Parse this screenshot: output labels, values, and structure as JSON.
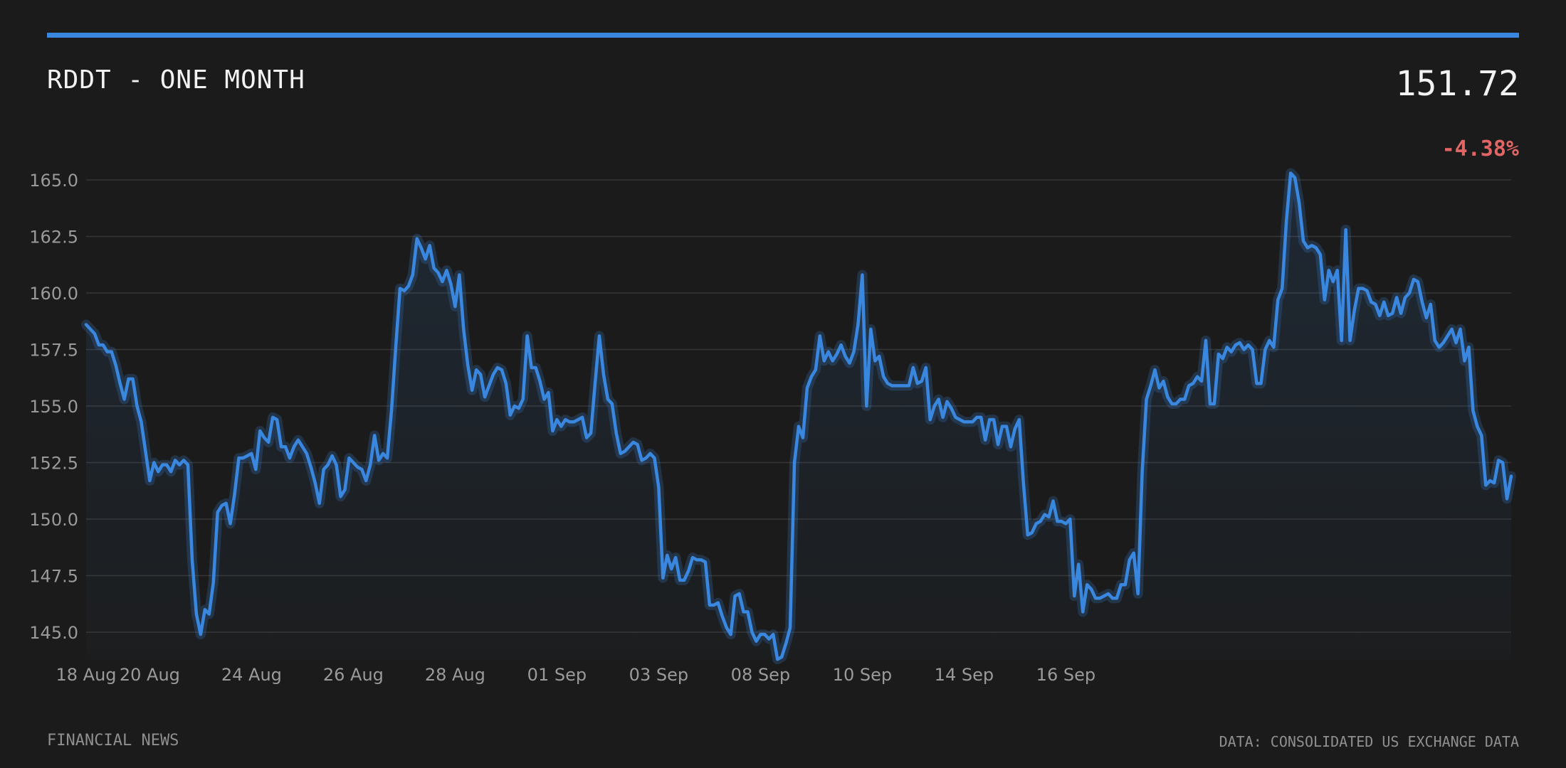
{
  "header": {
    "title": "RDDT - ONE MONTH",
    "price": "151.72",
    "change": "-4.38%"
  },
  "footer": {
    "left": "FINANCIAL NEWS",
    "right": "DATA: CONSOLIDATED US EXCHANGE DATA"
  },
  "colors": {
    "background": "#1b1b1b",
    "accent": "#3a87e0",
    "negative": "#e06666",
    "grid": "#363636",
    "text_muted": "#9a9a9a"
  },
  "chart_data": {
    "type": "line",
    "title": "",
    "xlabel": "",
    "ylabel": "",
    "ylim": [
      143.8,
      166.2
    ],
    "y_ticks": [
      "145.0",
      "147.5",
      "150.0",
      "152.5",
      "155.0",
      "157.5",
      "160.0",
      "162.5",
      "165.0"
    ],
    "y_tick_values": [
      145.0,
      147.5,
      150.0,
      152.5,
      155.0,
      157.5,
      160.0,
      162.5,
      165.0
    ],
    "x_ticks": [
      "18 Aug",
      "20 Aug",
      "24 Aug",
      "26 Aug",
      "28 Aug",
      "01 Sep",
      "03 Sep",
      "08 Sep",
      "10 Sep",
      "14 Sep",
      "16 Sep"
    ],
    "x_tick_index": [
      0,
      15,
      39,
      63,
      87,
      111,
      135,
      159,
      183,
      207,
      231
    ],
    "grid": true,
    "area_fill": true,
    "series": [
      {
        "values": [
          158.6,
          158.4,
          158.2,
          157.7,
          157.7,
          157.4,
          157.4,
          156.8,
          156.0,
          155.3,
          156.2,
          156.2,
          155.0,
          154.3,
          153.0,
          151.7,
          152.5,
          152.1,
          152.4,
          152.4,
          152.1,
          152.6,
          152.4,
          152.6,
          152.4,
          148.2,
          145.8,
          144.9,
          146.0,
          145.8,
          147.2,
          150.3,
          150.6,
          150.7,
          149.8,
          151.1,
          152.7,
          152.7,
          152.8,
          152.9,
          152.2,
          153.9,
          153.6,
          153.4,
          154.5,
          154.4,
          153.2,
          153.2,
          152.7,
          153.2,
          153.5,
          153.2,
          152.9,
          152.3,
          151.6,
          150.7,
          152.2,
          152.4,
          152.8,
          152.4,
          151.0,
          151.3,
          152.7,
          152.5,
          152.3,
          152.2,
          151.7,
          152.4,
          153.7,
          152.6,
          152.9,
          152.7,
          154.8,
          157.6,
          160.2,
          160.1,
          160.3,
          160.8,
          162.4,
          162.0,
          161.5,
          162.1,
          161.1,
          160.9,
          160.5,
          161.0,
          160.4,
          159.4,
          160.8,
          158.4,
          156.8,
          155.7,
          156.6,
          156.4,
          155.4,
          155.9,
          156.4,
          156.7,
          156.6,
          156.0,
          154.6,
          155.0,
          154.9,
          155.3,
          158.1,
          156.7,
          156.7,
          156.1,
          155.3,
          155.6,
          153.9,
          154.4,
          154.1,
          154.4,
          154.3,
          154.3,
          154.4,
          154.5,
          153.6,
          153.8,
          156.0,
          158.1,
          156.4,
          155.3,
          155.1,
          153.8,
          152.9,
          153.0,
          153.2,
          153.4,
          153.3,
          152.6,
          152.7,
          152.9,
          152.7,
          151.4,
          147.4,
          148.4,
          147.8,
          148.3,
          147.3,
          147.3,
          147.7,
          148.3,
          148.2,
          148.2,
          148.1,
          146.2,
          146.2,
          146.3,
          145.7,
          145.2,
          144.9,
          146.6,
          146.7,
          145.9,
          145.9,
          145.0,
          144.6,
          144.9,
          144.9,
          144.7,
          144.9,
          143.8,
          143.9,
          144.5,
          145.2,
          152.5,
          154.1,
          153.6,
          155.8,
          156.3,
          156.6,
          158.1,
          157.0,
          157.4,
          157.0,
          157.3,
          157.7,
          157.2,
          156.9,
          157.4,
          158.6,
          160.8,
          155.0,
          158.4,
          157.0,
          157.2,
          156.3,
          156.0,
          155.9,
          155.9,
          155.9,
          155.9,
          155.9,
          156.7,
          156.0,
          156.1,
          156.7,
          154.4,
          155.0,
          155.3,
          154.5,
          155.2,
          154.9,
          154.5,
          154.4,
          154.3,
          154.3,
          154.3,
          154.5,
          154.5,
          153.5,
          154.4,
          154.4,
          153.3,
          154.1,
          154.1,
          153.2,
          154.0,
          154.4,
          151.6,
          149.3,
          149.4,
          149.8,
          149.9,
          150.2,
          150.1,
          150.8,
          149.9,
          149.9,
          149.8,
          150.0,
          146.6,
          148.0,
          145.9,
          147.1,
          146.9,
          146.5,
          146.5,
          146.6,
          146.7,
          146.5,
          146.5,
          147.1,
          147.1,
          148.2,
          148.5,
          146.7,
          152.1,
          155.3,
          155.9,
          156.6,
          155.8,
          156.1,
          155.4,
          155.1,
          155.1,
          155.3,
          155.3,
          155.9,
          156.0,
          156.3,
          156.1,
          157.9,
          155.1,
          155.1,
          157.3,
          157.1,
          157.6,
          157.4,
          157.7,
          157.8,
          157.5,
          157.7,
          157.5,
          156.0,
          156.0,
          157.5,
          157.9,
          157.6,
          159.7,
          160.2,
          163.2,
          165.3,
          165.1,
          164.0,
          162.3,
          162.0,
          162.1,
          162.0,
          161.7,
          159.7,
          161.0,
          160.5,
          161.0,
          157.9,
          162.8,
          157.9,
          159.2,
          160.2,
          160.2,
          160.1,
          159.6,
          159.5,
          159.0,
          159.6,
          159.0,
          159.1,
          159.8,
          159.1,
          159.8,
          160.0,
          160.6,
          160.5,
          159.6,
          158.9,
          159.5,
          157.9,
          157.6,
          157.8,
          158.1,
          158.4,
          157.8,
          158.4,
          157.0,
          157.6,
          154.8,
          154.1,
          153.7,
          151.5,
          151.7,
          151.6,
          152.6,
          152.5,
          150.9,
          151.9
        ]
      }
    ]
  }
}
